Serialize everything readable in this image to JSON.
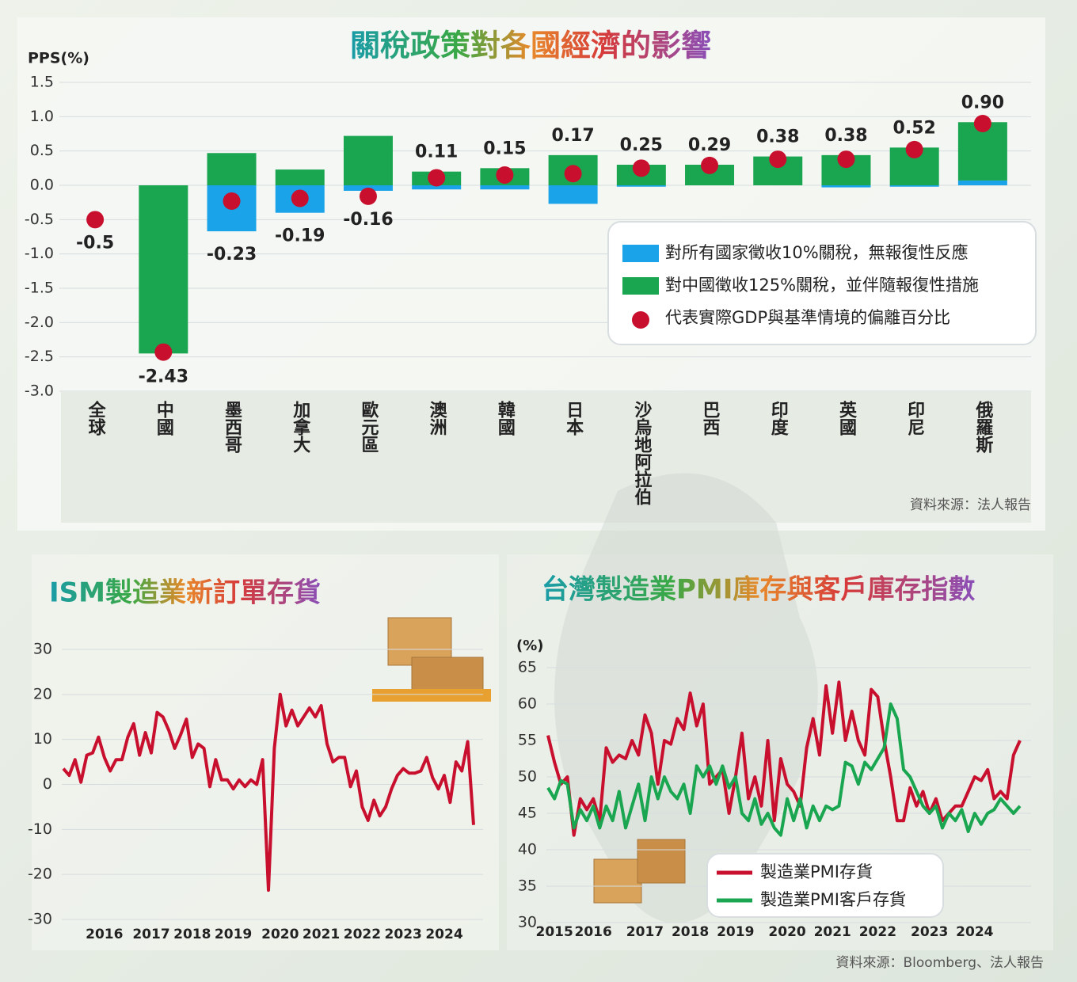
{
  "chart_data": [
    {
      "type": "bar",
      "title": "關稅政策對各國經濟的影響",
      "ylabel": "PPS(%)",
      "categories": [
        "全球",
        "中國",
        "墨西哥",
        "加拿大",
        "歐元區",
        "澳洲",
        "韓國",
        "日本",
        "沙烏地阿拉伯",
        "巴西",
        "印度",
        "英國",
        "印尼",
        "俄羅斯"
      ],
      "series": [
        {
          "name": "對所有國家徵收10%關稅，無報復性反應",
          "color": "#1aa3e8",
          "values": [
            0,
            0,
            -0.67,
            -0.4,
            -0.08,
            -0.06,
            -0.06,
            -0.27,
            -0.02,
            0,
            0,
            -0.03,
            -0.02,
            0.07
          ]
        },
        {
          "name": "對中國徵收125%關稅，並伴隨報復性措施",
          "color": "#1aa650",
          "values": [
            0,
            -2.45,
            0.47,
            0.23,
            0.72,
            0.2,
            0.25,
            0.44,
            0.3,
            0.3,
            0.42,
            0.44,
            0.55,
            0.85
          ]
        },
        {
          "name": "代表實際GDP與基準情境的偏離百分比",
          "type": "scatter",
          "color": "#c8102e",
          "values": [
            -0.5,
            -2.43,
            -0.23,
            -0.19,
            -0.16,
            0.11,
            0.15,
            0.17,
            0.25,
            0.29,
            0.38,
            0.38,
            0.52,
            0.9
          ],
          "value_labels": [
            "-0.5",
            "-2.43",
            "-0.23",
            "-0.19",
            "-0.16",
            "0.11",
            "0.15",
            "0.17",
            "0.25",
            "0.29",
            "0.38",
            "0.38",
            "0.52",
            "0.90"
          ]
        }
      ],
      "ylim": [
        -3,
        1.5
      ],
      "yticks": [
        1.5,
        {
          "value": 1,
          "label": "1.0"
        },
        0.5,
        {
          "value": 0,
          "label": "0.0"
        },
        -0.5,
        {
          "value": -1,
          "label": "-1.0"
        },
        -1.5,
        {
          "value": -2,
          "label": "-2.0"
        },
        -2.5,
        {
          "value": -3,
          "label": "-3.0"
        }
      ],
      "grid": true,
      "legend": "right",
      "source": "資料來源：法人報告"
    },
    {
      "type": "line",
      "title": "ISM製造業新訂單存貨",
      "categories": [
        null,
        null,
        null,
        null,
        null,
        null,
        null,
        "2016",
        null,
        null,
        null,
        null,
        null,
        null,
        null,
        "2017",
        null,
        null,
        null,
        null,
        null,
        null,
        "2018",
        null,
        null,
        null,
        null,
        null,
        null,
        "2019",
        null,
        null,
        null,
        null,
        null,
        null,
        null,
        "2020",
        null,
        null,
        null,
        null,
        null,
        null,
        "2021",
        null,
        null,
        null,
        null,
        null,
        null,
        "2022",
        null,
        null,
        null,
        null,
        null,
        null,
        "2023",
        null,
        null,
        null,
        null,
        null,
        null,
        "2024",
        null,
        null,
        null,
        null,
        null
      ],
      "series": [
        {
          "color": "#c8102e",
          "values": [
            3.5,
            2,
            5.5,
            0.5,
            6.5,
            7,
            10.5,
            6,
            3,
            5.5,
            5.5,
            10.5,
            13.5,
            6.5,
            11.5,
            7,
            16,
            15,
            12,
            8,
            11,
            14.5,
            6,
            9,
            8,
            -0.5,
            5.5,
            1,
            1,
            -1,
            1,
            -0.5,
            1,
            0,
            5.5,
            -23.5,
            8,
            20,
            13,
            16.5,
            13,
            15,
            17,
            15,
            17.5,
            9,
            5,
            6,
            6,
            -0.5,
            3,
            -5,
            -8,
            -3.5,
            -7,
            -5,
            -1,
            2,
            3.5,
            2.5,
            2.5,
            3,
            6,
            1.5,
            -1,
            2,
            -4,
            5,
            3,
            9.5,
            -9
          ]
        }
      ],
      "ylim": [
        -30,
        30
      ],
      "yticks": [
        30,
        20,
        10,
        0,
        -10,
        -20,
        -30
      ],
      "grid": true
    },
    {
      "type": "line",
      "title": "台灣製造業PMI庫存與客戶庫存指數",
      "ylabel": "(%)",
      "categories": [
        null,
        "2015",
        null,
        null,
        null,
        null,
        null,
        "2016",
        null,
        null,
        null,
        null,
        null,
        null,
        null,
        "2017",
        null,
        null,
        null,
        null,
        null,
        null,
        "2018",
        null,
        null,
        null,
        null,
        null,
        null,
        "2019",
        null,
        null,
        null,
        null,
        null,
        null,
        null,
        "2020",
        null,
        null,
        null,
        null,
        null,
        null,
        "2021",
        null,
        null,
        null,
        null,
        null,
        null,
        "2022",
        null,
        null,
        null,
        null,
        null,
        null,
        null,
        "2023",
        null,
        null,
        null,
        null,
        null,
        null,
        "2024",
        null,
        null,
        null,
        null,
        null,
        null,
        null
      ],
      "series": [
        {
          "name": "製造業PMI存貨",
          "color": "#c8102e",
          "values": [
            55.7,
            52,
            49,
            50,
            42,
            47,
            45.5,
            47,
            44,
            54,
            52,
            53,
            52.5,
            55,
            53,
            58.5,
            56,
            49,
            55,
            54.5,
            58,
            56.5,
            61.5,
            57,
            60,
            49,
            50,
            51,
            45,
            50,
            56,
            47,
            50,
            46,
            55,
            44,
            52.5,
            49,
            48,
            46,
            54,
            58,
            53,
            62.5,
            56,
            63,
            55,
            59,
            55,
            53,
            62,
            61,
            55,
            50,
            44,
            44,
            48.5,
            46,
            48,
            45,
            47,
            44,
            45,
            46,
            46,
            48,
            50,
            49.5,
            51,
            47,
            48,
            47,
            53,
            55
          ]
        },
        {
          "name": "製造業PMI客戶存貨",
          "color": "#1aa650",
          "values": [
            48.5,
            47,
            49.5,
            49,
            43,
            45.5,
            44,
            46,
            43,
            46,
            44,
            48,
            43,
            46,
            49,
            44,
            50,
            47,
            50,
            48,
            47,
            49,
            45,
            51.5,
            50,
            51.5,
            49,
            51.5,
            48.5,
            50,
            45,
            44,
            47,
            43.5,
            45,
            43,
            42,
            47,
            44,
            47,
            43,
            46,
            44,
            46,
            45.5,
            46,
            52,
            51.5,
            49,
            52,
            51,
            52.5,
            54,
            60,
            58,
            51,
            50,
            48,
            46,
            45,
            46,
            43,
            45,
            44,
            45.5,
            42.5,
            45,
            43.5,
            45,
            45.5,
            47,
            46,
            45,
            46
          ]
        }
      ],
      "ylim": [
        30,
        65
      ],
      "yticks": [
        65,
        60,
        55,
        50,
        45,
        40,
        35,
        30
      ],
      "grid": true,
      "legend": "bottom-right",
      "source": "資料來源：Bloomberg、法人報告"
    }
  ]
}
